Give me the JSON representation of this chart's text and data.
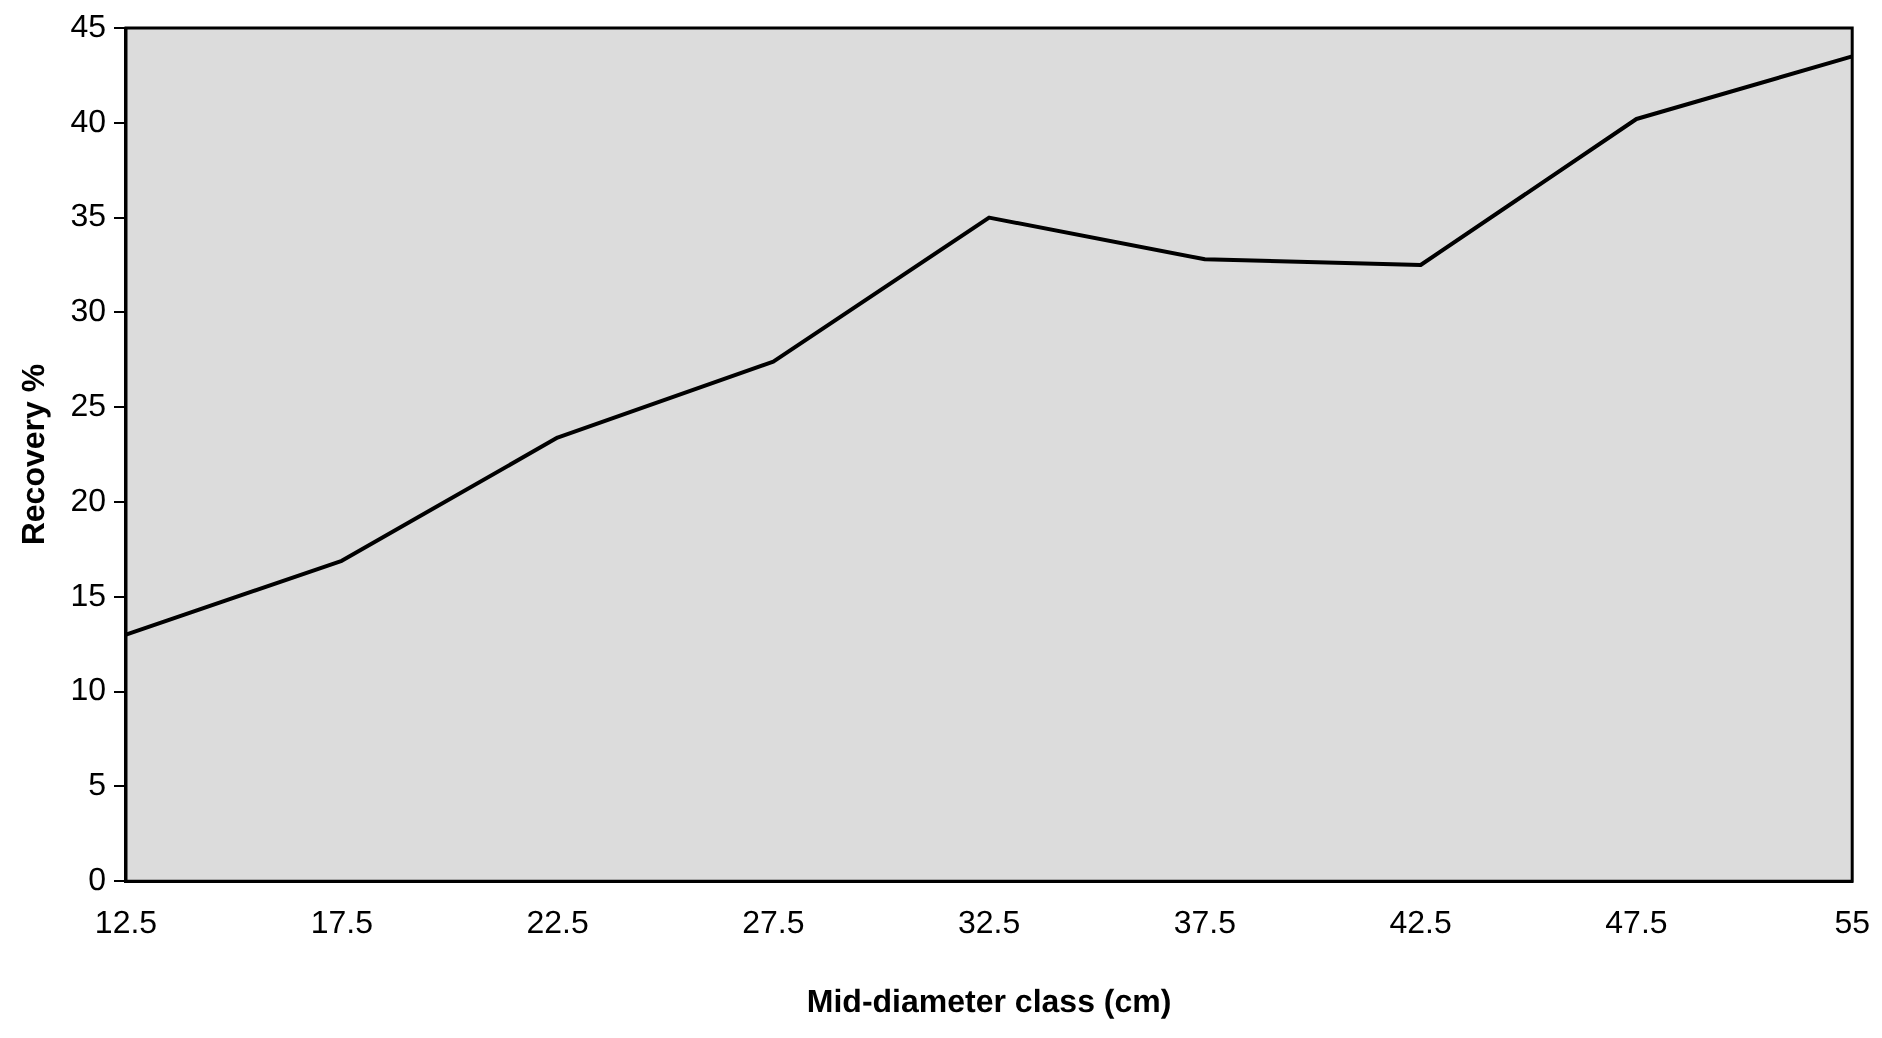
{
  "chart_data": {
    "type": "line",
    "xlabel": "Mid-diameter class (cm)",
    "ylabel": "Recovery %",
    "categories": [
      "12.5",
      "17.5",
      "22.5",
      "27.5",
      "32.5",
      "37.5",
      "42.5",
      "47.5",
      "55"
    ],
    "series": [
      {
        "color": "#000000",
        "values": [
          13.0,
          16.9,
          23.4,
          27.4,
          35.0,
          32.8,
          32.5,
          40.2,
          43.5
        ]
      }
    ],
    "ylim": [
      0,
      45
    ],
    "yticks": [
      0,
      5,
      10,
      15,
      20,
      25,
      30,
      35,
      40,
      45
    ],
    "grid": false,
    "legend": false,
    "marker": "none",
    "line_style": "solid"
  }
}
